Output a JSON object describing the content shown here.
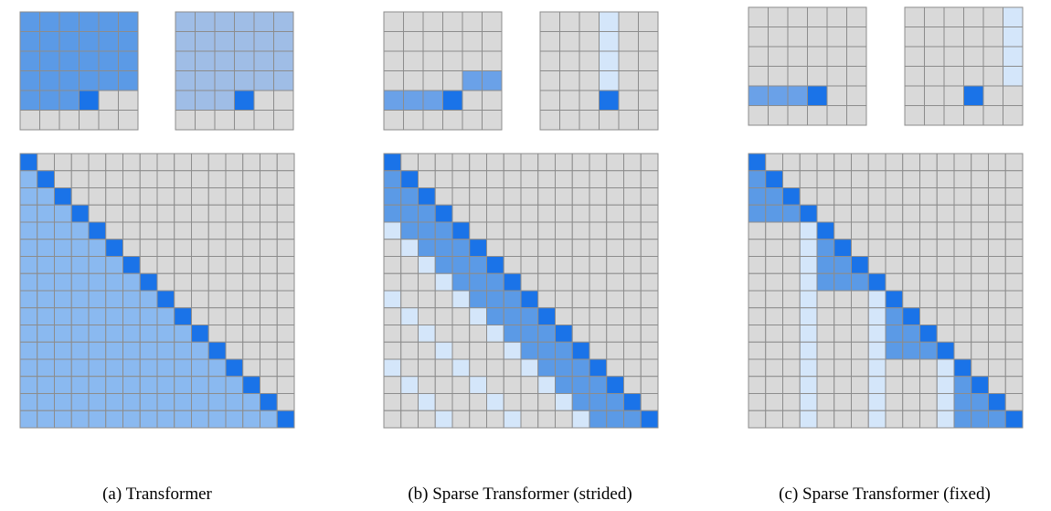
{
  "colors": {
    "grid_line": "#8c8c8c",
    "empty": "#d9d9d9",
    "current": "#1a73e8",
    "dense_attend": "#5b9ae6",
    "dense_attend_alt": "#9fbde6",
    "full_attend": "#8ab9f0",
    "local_attend": "#6aa1e8",
    "secondary_attend": "#d4e6fa"
  },
  "panels": [
    {
      "id": "transformer",
      "caption": "(a)  Transformer",
      "large_pattern": "dense",
      "small_heads": [
        {
          "head": 1,
          "pattern": "dense-rows",
          "color_key": "dense_attend"
        },
        {
          "head": 2,
          "pattern": "dense-rows",
          "color_key": "dense_attend_alt"
        }
      ]
    },
    {
      "id": "strided",
      "caption": "(b)  Sparse Transformer (strided)",
      "large_pattern": "strided",
      "small_heads": [
        {
          "head": 1,
          "pattern": "local-window",
          "color_key": "local_attend"
        },
        {
          "head": 2,
          "pattern": "strided-column",
          "color_key": "secondary_attend"
        }
      ]
    },
    {
      "id": "fixed",
      "caption": "(c)  Sparse Transformer (fixed)",
      "large_pattern": "fixed",
      "small_heads": [
        {
          "head": 1,
          "pattern": "block-local",
          "color_key": "local_attend"
        },
        {
          "head": 2,
          "pattern": "fixed-summary",
          "color_key": "secondary_attend"
        }
      ]
    }
  ]
}
